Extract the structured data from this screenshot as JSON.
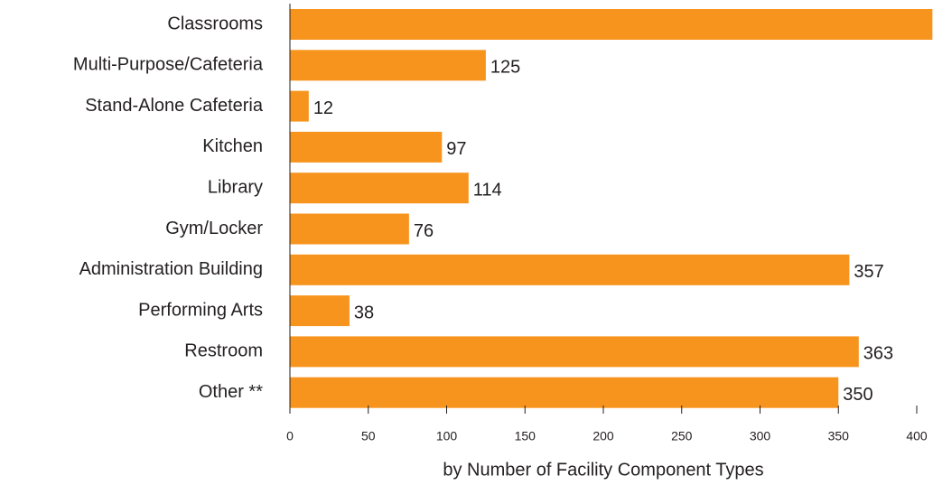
{
  "chart_data": {
    "type": "bar",
    "orientation": "horizontal",
    "categories": [
      "Classrooms",
      "Multi-Purpose/Cafeteria",
      "Stand-Alone Cafeteria",
      "Kitchen",
      "Library",
      "Gym/Locker",
      "Administration Building",
      "Performing Arts",
      "Restroom",
      "Other **"
    ],
    "values": [
      410,
      125,
      12,
      97,
      114,
      76,
      357,
      38,
      363,
      350
    ],
    "color": "#f7941d",
    "xlim": [
      0,
      400
    ],
    "xticks": [
      0,
      50,
      100,
      150,
      200,
      250,
      300,
      350,
      400
    ],
    "xlabel": "by Number of Facility Component Types"
  }
}
